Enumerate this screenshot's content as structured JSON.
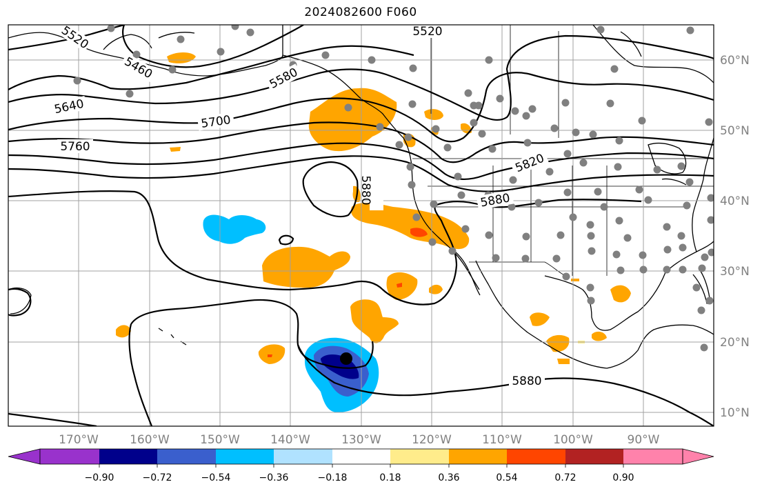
{
  "title": "2024082600 F060",
  "map": {
    "lon_labels": [
      "170°W",
      "160°W",
      "150°W",
      "140°W",
      "130°W",
      "120°W",
      "110°W",
      "100°W",
      "90°W"
    ],
    "lat_labels": [
      "60°N",
      "50°N",
      "40°N",
      "30°N",
      "20°N",
      "10°N"
    ],
    "contour_labels": [
      "5520",
      "5460",
      "5520",
      "5580",
      "5640",
      "5700",
      "5760",
      "5820",
      "5880",
      "5880",
      "5880"
    ],
    "colors": {
      "orange": "#FFA500",
      "red_orange": "#FF4500",
      "cyan": "#00BFFF",
      "blue": "#3A5FCD",
      "navy": "#00008B",
      "station": "#808080"
    }
  },
  "colorbar": {
    "ticks": [
      "−0.90",
      "−0.72",
      "−0.54",
      "−0.36",
      "−0.18",
      "0.18",
      "0.36",
      "0.54",
      "0.72",
      "0.90"
    ],
    "colors": [
      "#9932CC",
      "#00008B",
      "#3A5FCD",
      "#00BFFF",
      "#B0E2FF",
      "#FFFFFF",
      "#FFEC8B",
      "#FFA500",
      "#FF4500",
      "#B22222",
      "#FF82AB"
    ]
  }
}
